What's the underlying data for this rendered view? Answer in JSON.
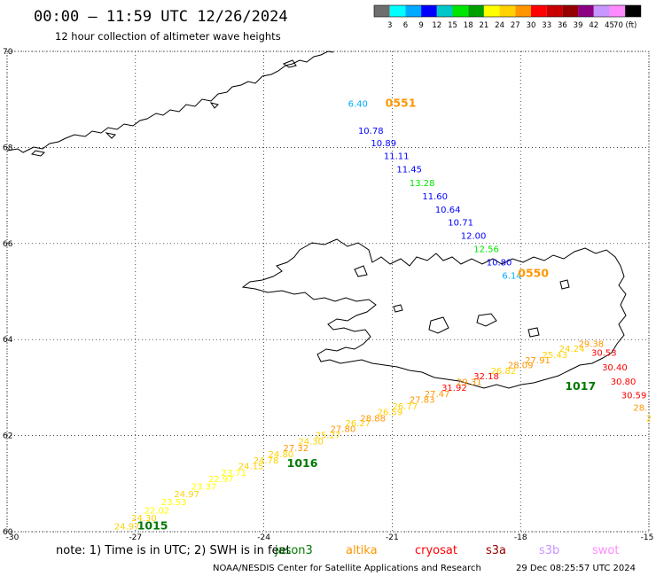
{
  "header": {
    "title": "00:00 – 11:59 UTC 12/26/2024",
    "subtitle": "12 hour collection of altimeter wave heights"
  },
  "colorbar": {
    "colors": [
      "#6e6e6e",
      "#00ffff",
      "#00aaff",
      "#0000ff",
      "#00c8c8",
      "#00e600",
      "#00a000",
      "#ffff00",
      "#ffd200",
      "#ff9600",
      "#ff0000",
      "#c80000",
      "#960000",
      "#8c0082",
      "#c896ff",
      "#ff8cff",
      "#000000"
    ],
    "labels": [
      "3",
      "6",
      "9",
      "12",
      "15",
      "18",
      "21",
      "24",
      "27",
      "30",
      "33",
      "36",
      "39",
      "42",
      "45",
      "70 (ft)"
    ]
  },
  "axes": {
    "lon_labels": [
      "-30",
      "-27",
      "-24",
      "-21",
      "-18",
      "-15"
    ],
    "lat_labels": [
      "70",
      "68",
      "66",
      "64",
      "62",
      "60"
    ]
  },
  "chart_data": {
    "type": "scatter",
    "xlim": [
      -30,
      -15
    ],
    "ylim": [
      60,
      70
    ],
    "grid": true,
    "passes": [
      {
        "satellite": "altika",
        "times": [
          {
            "label": "0551",
            "lon": -20.8,
            "lat": 68.85,
            "color": "#ff9600"
          },
          {
            "label": "0550",
            "lon": -17.7,
            "lat": 65.3,
            "color": "#ff9600"
          }
        ],
        "points": [
          {
            "lon": -21.8,
            "lat": 68.85,
            "value": "6.40",
            "color": "#00aaff"
          },
          {
            "lon": -21.5,
            "lat": 68.28,
            "value": "10.78",
            "color": "#0000ff"
          },
          {
            "lon": -21.2,
            "lat": 68.03,
            "value": "10.89",
            "color": "#0000ff"
          },
          {
            "lon": -20.9,
            "lat": 67.76,
            "value": "11.11",
            "color": "#0000ff"
          },
          {
            "lon": -20.6,
            "lat": 67.48,
            "value": "11.45",
            "color": "#0000ff"
          },
          {
            "lon": -20.3,
            "lat": 67.2,
            "value": "13.28",
            "color": "#00e600"
          },
          {
            "lon": -20.0,
            "lat": 66.92,
            "value": "11.60",
            "color": "#0000ff"
          },
          {
            "lon": -19.7,
            "lat": 66.64,
            "value": "10.64",
            "color": "#0000ff"
          },
          {
            "lon": -19.4,
            "lat": 66.37,
            "value": "10.71",
            "color": "#0000ff"
          },
          {
            "lon": -19.1,
            "lat": 66.1,
            "value": "12.00",
            "color": "#0000ff"
          },
          {
            "lon": -18.8,
            "lat": 65.82,
            "value": "12.56",
            "color": "#00e600"
          },
          {
            "lon": -18.5,
            "lat": 65.54,
            "value": "10.80",
            "color": "#0000ff"
          },
          {
            "lon": -18.2,
            "lat": 65.27,
            "value": "6.14",
            "color": "#00aaff"
          }
        ]
      },
      {
        "satellite": "jason3",
        "times": [
          {
            "label": "1017",
            "lon": -16.6,
            "lat": 62.95,
            "color": "#007800"
          },
          {
            "lon": -23.1,
            "lat": 61.35,
            "label": "1016",
            "color": "#007800"
          },
          {
            "lon": -26.6,
            "lat": 60.05,
            "label": "1015",
            "color": "#007800"
          }
        ],
        "points": [
          {
            "lon": -27.2,
            "lat": 60.05,
            "value": "24.97",
            "color": "#ffd200"
          },
          {
            "lon": -26.8,
            "lat": 60.22,
            "value": "24.30",
            "color": "#ffd200"
          },
          {
            "lon": -26.5,
            "lat": 60.38,
            "value": "22.02",
            "color": "#ffff00"
          },
          {
            "lon": -26.1,
            "lat": 60.55,
            "value": "23.53",
            "color": "#ffff00"
          },
          {
            "lon": -25.8,
            "lat": 60.72,
            "value": "24.97",
            "color": "#ffd200"
          },
          {
            "lon": -25.4,
            "lat": 60.88,
            "value": "23.37",
            "color": "#ffff00"
          },
          {
            "lon": -25.0,
            "lat": 61.03,
            "value": "22.97",
            "color": "#ffff00"
          },
          {
            "lon": -24.7,
            "lat": 61.16,
            "value": "23.71",
            "color": "#ffff00"
          },
          {
            "lon": -24.3,
            "lat": 61.3,
            "value": "24.15",
            "color": "#ffd200"
          },
          {
            "lon": -23.95,
            "lat": 61.42,
            "value": "24.78",
            "color": "#ffd200"
          },
          {
            "lon": -23.6,
            "lat": 61.55,
            "value": "24.80",
            "color": "#ffd200"
          },
          {
            "lon": -23.25,
            "lat": 61.68,
            "value": "27.32",
            "color": "#ff9600"
          },
          {
            "lon": -22.9,
            "lat": 61.82,
            "value": "24.30",
            "color": "#ffd200"
          },
          {
            "lon": -22.5,
            "lat": 61.95,
            "value": "25.27",
            "color": "#ffd200"
          },
          {
            "lon": -22.15,
            "lat": 62.08,
            "value": "27.80",
            "color": "#ff9600"
          },
          {
            "lon": -21.8,
            "lat": 62.2,
            "value": "26.27",
            "color": "#ffd200"
          },
          {
            "lon": -21.45,
            "lat": 62.3,
            "value": "28.88",
            "color": "#ff9600"
          },
          {
            "lon": -21.05,
            "lat": 62.43,
            "value": "26.59",
            "color": "#ffd200"
          },
          {
            "lon": -20.7,
            "lat": 62.55,
            "value": "26.77",
            "color": "#ffd200"
          },
          {
            "lon": -20.3,
            "lat": 62.68,
            "value": "27.83",
            "color": "#ff9600"
          },
          {
            "lon": -19.95,
            "lat": 62.8,
            "value": "27.47",
            "color": "#ff9600"
          },
          {
            "lon": -19.55,
            "lat": 62.93,
            "value": "31.92",
            "color": "#ff0000"
          },
          {
            "lon": -19.2,
            "lat": 63.05,
            "value": "29.31",
            "color": "#ff9600"
          },
          {
            "lon": -18.8,
            "lat": 63.17,
            "value": "32.18",
            "color": "#ff0000"
          },
          {
            "lon": -18.4,
            "lat": 63.28,
            "value": "26.82",
            "color": "#ffd200"
          },
          {
            "lon": -18.0,
            "lat": 63.4,
            "value": "28.09",
            "color": "#ff9600"
          },
          {
            "lon": -17.6,
            "lat": 63.51,
            "value": "27.91",
            "color": "#ff9600"
          },
          {
            "lon": -17.2,
            "lat": 63.62,
            "value": "25.43",
            "color": "#ffd200"
          },
          {
            "lon": -16.8,
            "lat": 63.75,
            "value": "24.24",
            "color": "#ffd200"
          },
          {
            "lon": -16.35,
            "lat": 63.85,
            "value": "29.38",
            "color": "#ff9600"
          },
          {
            "lon": -16.05,
            "lat": 63.66,
            "value": "30.53",
            "color": "#ff0000"
          },
          {
            "lon": -15.8,
            "lat": 63.36,
            "value": "30.40",
            "color": "#ff0000"
          },
          {
            "lon": -15.6,
            "lat": 63.06,
            "value": "30.80",
            "color": "#ff0000"
          },
          {
            "lon": -15.35,
            "lat": 62.78,
            "value": "30.59",
            "color": "#ff0000"
          },
          {
            "lon": -15.2,
            "lat": 62.52,
            "value": "28.",
            "color": "#ff9600"
          },
          {
            "lon": -15.0,
            "lat": 62.3,
            "value": "2",
            "color": "#ffd200"
          }
        ]
      }
    ]
  },
  "legend": {
    "note_label": "note:  1) Time is in UTC;  2) SWH is in feet",
    "entries": [
      {
        "name": "jason3",
        "color": "#007800"
      },
      {
        "name": "altika",
        "color": "#ff9600"
      },
      {
        "name": "cryosat",
        "color": "#ff0000"
      },
      {
        "name": "s3a",
        "color": "#960000"
      },
      {
        "name": "s3b",
        "color": "#c896ff"
      },
      {
        "name": "swot",
        "color": "#ff8cff"
      }
    ]
  },
  "footer": {
    "credit": "NOAA/NESDIS Center for Satellite Applications and Research",
    "timestamp": "29 Dec 08:25:57 UTC 2024"
  }
}
